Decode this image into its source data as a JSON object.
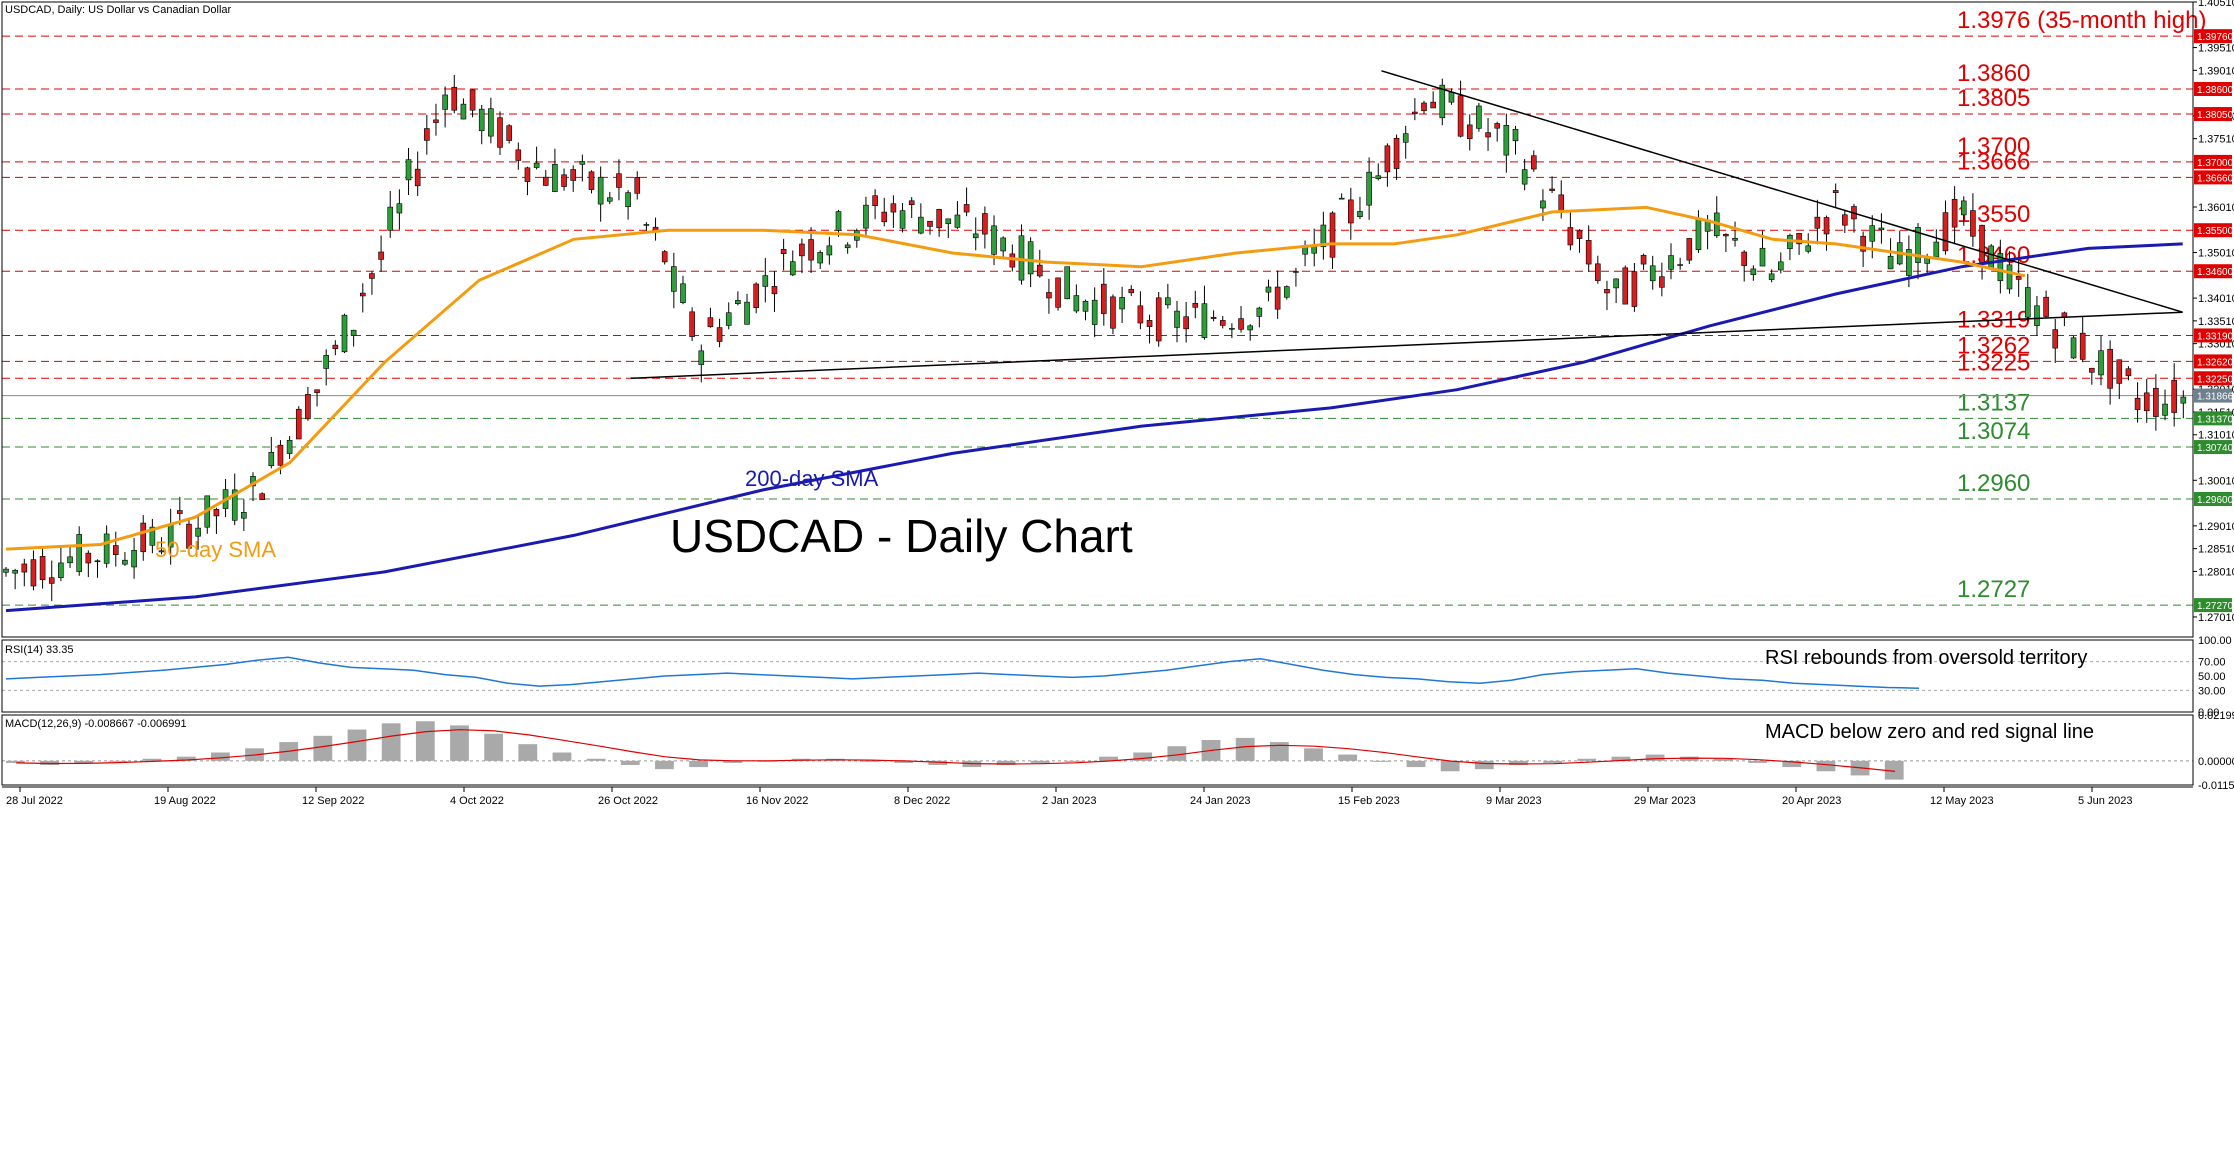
{
  "header": {
    "symbol_label": "USDCAD, Daily:  US Dollar vs Canadian Dollar"
  },
  "chart_data": [
    {
      "type": "line",
      "pane": "price",
      "title": "USDCAD - Daily Chart",
      "ylim": [
        1.2657,
        1.4051
      ],
      "y_tick_labels": [
        "1.40510",
        "1.39510",
        "1.39010",
        "1.38010",
        "1.37510",
        "1.36010",
        "1.35010",
        "1.34010",
        "1.33510",
        "1.33010",
        "1.32010",
        "1.31510",
        "1.31010",
        "1.30010",
        "1.29010",
        "1.28510",
        "1.28010",
        "1.27010"
      ],
      "x_tick_labels": [
        "28 Jul 2022",
        "19 Aug 2022",
        "12 Sep 2022",
        "4 Oct 2022",
        "26 Oct 2022",
        "16 Nov 2022",
        "8 Dec 2022",
        "2 Jan 2023",
        "24 Jan 2023",
        "15 Feb 2023",
        "9 Mar 2023",
        "29 Mar 2023",
        "20 Apr 2023",
        "12 May 2023",
        "5 Jun 2023"
      ],
      "levels": [
        {
          "value": 1.3976,
          "label": "1.3976 (35-month high)",
          "axis_label": "1.39760",
          "color": "#e00000"
        },
        {
          "value": 1.386,
          "label": "1.3860",
          "axis_label": "1.38600",
          "color": "#e00000"
        },
        {
          "value": 1.3805,
          "label": "1.3805",
          "axis_label": "1.38050",
          "color": "#e00000"
        },
        {
          "value": 1.37,
          "label": "1.3700",
          "axis_label": "1.37000",
          "color": "#e00000"
        },
        {
          "value": 1.3666,
          "label": "1.3666",
          "axis_label": "1.36660",
          "color": "#e00000"
        },
        {
          "value": 1.355,
          "label": "1.3550",
          "axis_label": "1.35500",
          "color": "#e00000"
        },
        {
          "value": 1.346,
          "label": "1.3460",
          "axis_label": "1.34600",
          "color": "#e00000"
        },
        {
          "value": 1.3319,
          "label": "1.3319",
          "axis_label": "1.33190",
          "color": "#e00000"
        },
        {
          "value": 1.3262,
          "label": "1.3262",
          "axis_label": "1.32620",
          "color": "#e00000"
        },
        {
          "value": 1.3225,
          "label": "1.3225",
          "axis_label": "1.32250",
          "color": "#e00000"
        },
        {
          "value": 1.3137,
          "label": "1.3137",
          "axis_label": "1.31370",
          "color": "#2e8b2e"
        },
        {
          "value": 1.3074,
          "label": "1.3074",
          "axis_label": "1.30740",
          "color": "#2e8b2e"
        },
        {
          "value": 1.296,
          "label": "1.2960",
          "axis_label": "1.29600",
          "color": "#2e8b2e"
        },
        {
          "value": 1.2727,
          "label": "1.2727",
          "axis_label": "1.27270",
          "color": "#2e8b2e"
        }
      ],
      "current_price": {
        "value": 1.3187,
        "axis_label": "1.31866"
      },
      "series": [
        {
          "name": "200-day SMA",
          "color": "#1a1ab0",
          "points": [
            [
              0,
              1.2715
            ],
            [
              30,
              1.2745
            ],
            [
              60,
              1.28
            ],
            [
              90,
              1.288
            ],
            [
              120,
              1.298
            ],
            [
              150,
              1.306
            ],
            [
              180,
              1.312
            ],
            [
              210,
              1.316
            ],
            [
              230,
              1.32
            ],
            [
              250,
              1.326
            ],
            [
              270,
              1.334
            ],
            [
              290,
              1.341
            ],
            [
              310,
              1.347
            ],
            [
              330,
              1.351
            ],
            [
              345,
              1.352
            ]
          ]
        },
        {
          "name": "50-day SMA",
          "color": "#f39c12",
          "points": [
            [
              0,
              1.285
            ],
            [
              15,
              1.286
            ],
            [
              30,
              1.292
            ],
            [
              45,
              1.304
            ],
            [
              60,
              1.326
            ],
            [
              75,
              1.344
            ],
            [
              90,
              1.353
            ],
            [
              105,
              1.355
            ],
            [
              120,
              1.355
            ],
            [
              135,
              1.354
            ],
            [
              150,
              1.35
            ],
            [
              165,
              1.348
            ],
            [
              180,
              1.347
            ],
            [
              195,
              1.35
            ],
            [
              210,
              1.352
            ],
            [
              220,
              1.352
            ],
            [
              230,
              1.354
            ],
            [
              245,
              1.359
            ],
            [
              260,
              1.36
            ],
            [
              270,
              1.357
            ],
            [
              280,
              1.353
            ],
            [
              290,
              1.352
            ],
            [
              300,
              1.35
            ],
            [
              310,
              1.348
            ],
            [
              320,
              1.345
            ]
          ]
        }
      ],
      "annotations": [
        "200-day SMA",
        "50-day SMA"
      ]
    },
    {
      "type": "line",
      "pane": "rsi",
      "title": "RSI(14) 33.35",
      "ylim": [
        0,
        100
      ],
      "y_tick_labels": [
        "100.00",
        "70.00",
        "50.00",
        "30.00",
        "0.00"
      ],
      "values": [
        46,
        48,
        50,
        52,
        55,
        58,
        62,
        66,
        72,
        76,
        68,
        62,
        60,
        58,
        52,
        48,
        40,
        36,
        38,
        42,
        46,
        50,
        52,
        54,
        52,
        50,
        48,
        46,
        48,
        50,
        52,
        54,
        52,
        50,
        48,
        50,
        54,
        58,
        64,
        70,
        74,
        66,
        58,
        52,
        48,
        46,
        42,
        40,
        44,
        52,
        56,
        58,
        60,
        54,
        50,
        46,
        44,
        40,
        38,
        36,
        34,
        33
      ],
      "annotation": "RSI rebounds from oversold territory"
    },
    {
      "type": "bar",
      "pane": "macd",
      "title": "MACD(12,26,9) -0.008667 -0.006991",
      "ylim": [
        -0.011598,
        0.021995
      ],
      "y_tick_labels": [
        "0.021995",
        "0.000000",
        "-0.011598"
      ],
      "histogram": [
        -0.001,
        -0.002,
        -0.001,
        0.0,
        0.001,
        0.002,
        0.004,
        0.006,
        0.009,
        0.012,
        0.015,
        0.018,
        0.019,
        0.017,
        0.013,
        0.008,
        0.004,
        0.001,
        -0.002,
        -0.004,
        -0.003,
        -0.001,
        0.0,
        0.001,
        0.001,
        0.0,
        -0.001,
        -0.002,
        -0.003,
        -0.002,
        -0.001,
        0.0,
        0.002,
        0.004,
        0.007,
        0.01,
        0.011,
        0.009,
        0.006,
        0.003,
        0.0,
        -0.003,
        -0.005,
        -0.004,
        -0.002,
        -0.001,
        0.001,
        0.002,
        0.003,
        0.002,
        0.001,
        -0.001,
        -0.003,
        -0.005,
        -0.007,
        -0.009
      ],
      "signal_color": "#e00000",
      "annotation": "MACD below zero and red signal line"
    }
  ]
}
